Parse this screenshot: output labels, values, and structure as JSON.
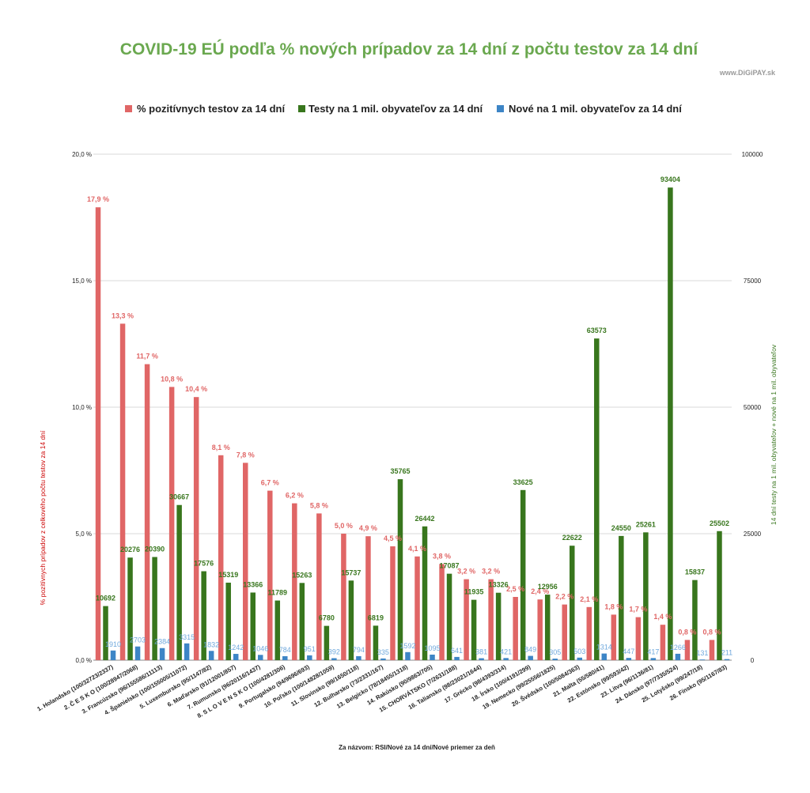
{
  "watermark": "www.DiGiPAY.sk",
  "chart_data": {
    "type": "bar",
    "title": "COVID-19 EÚ  podľa % nových prípadov za 14 dní z počtu testov za 14 dní",
    "xlabel": "Za názvom: RSI/Nové za 14 dní/Nové priemer za deň",
    "ylabel_left": "% pozitívnych prípadov z celkového počtu testov za 14 dní",
    "ylabel_right": "14 dní testy na  1 mil. obyvateľov + nové  na 1 mil. obyvateľov",
    "ylim_left": [
      0,
      20
    ],
    "ylim_right": [
      0,
      100000
    ],
    "yticks_left": [
      "0,0 %",
      "5,0 %",
      "10,0 %",
      "15,0 %",
      "20,0 %"
    ],
    "yticks_right": [
      "0",
      "25000",
      "50000",
      "75000",
      "100000"
    ],
    "grid": true,
    "legend_position": "top",
    "colors": {
      "pct": "#e06666",
      "tests": "#38761d",
      "new": "#3d85c6",
      "title": "#6aa84f"
    },
    "categories": [
      "1. Holandsko (100/32723/2337)",
      "2. Č E S K O (100/28947/2068)",
      "3. Francúzsko (96/155586/11113)",
      "4. Španielsko (100/155005/11072)",
      "5. Luxembursko (95/1147/82)",
      "6. Maďarsko (91/12001/857)",
      "7. Rumunsko (96/20116/1437)",
      "8. S L O V E N S K O (100/4281/306)",
      "9. Portugalsko (94/9696/693)",
      "10. Poľsko (100/14828/1059)",
      "11. Slovinsko (99/1650/118)",
      "12. Bulharsko (73/2331/167)",
      "13. Belgicko (78/18455/1318)",
      "14. Rakúsko (90/9863/705)",
      "15. CHORVÁTSKO (7/2631/188)",
      "16. Taliansko (98/23021/1644)",
      "17. Grécko (98/4393/314)",
      "18. Írsko (100/4191/299)",
      "19. Nemecko (99/25556/1825)",
      "20. Švédsko (100/5084/363)",
      "21. Malta (55/580/41)",
      "22. Estónsko (99/593/42)",
      "23. Litva (96/1136/81)",
      "24. Dánsko (97/7335/524)",
      "25. Lotyšsko (99/247/18)",
      "26. Fínsko (95/1167/83)"
    ],
    "series": [
      {
        "name": "% pozitívnych testov za 14 dní",
        "axis": "left",
        "values": [
          17.9,
          13.3,
          11.7,
          10.8,
          10.4,
          8.1,
          7.8,
          6.7,
          6.2,
          5.8,
          5.0,
          4.9,
          4.5,
          4.1,
          3.8,
          3.2,
          3.2,
          2.5,
          2.4,
          2.2,
          2.1,
          1.8,
          1.7,
          1.4,
          0.8,
          0.8
        ],
        "labels": [
          "17,9 %",
          "13,3 %",
          "11,7 %",
          "10,8 %",
          "10,4 %",
          "8,1 %",
          "7,8 %",
          "6,7 %",
          "6,2 %",
          "5,8 %",
          "5,0 %",
          "4,9 %",
          "4,5 %",
          "4,1 %",
          "3,8 %",
          "3,2 %",
          "3,2 %",
          "2,5 %",
          "2,4 %",
          "2,2 %",
          "2,1 %",
          "1,8 %",
          "1,7 %",
          "1,4 %",
          "0,8 %",
          "0,8 %"
        ]
      },
      {
        "name": "Testy na 1 mil. obyvateľov za 14 dní",
        "axis": "right",
        "values": [
          10692,
          20276,
          20390,
          30667,
          17576,
          15319,
          13366,
          11789,
          15263,
          6780,
          15737,
          6819,
          35765,
          26442,
          17087,
          11935,
          13326,
          33625,
          12956,
          22622,
          63573,
          24550,
          25261,
          93404,
          15837,
          25502
        ]
      },
      {
        "name": "Nové na 1 mil. obyvateľov za 14 dní",
        "axis": "right",
        "values": [
          1910,
          2703,
          2384,
          3315,
          1832,
          1242,
          1046,
          784,
          951,
          392,
          794,
          335,
          1592,
          1095,
          641,
          381,
          421,
          849,
          305,
          503,
          1314,
          447,
          417,
          1266,
          131,
          211
        ]
      }
    ]
  }
}
